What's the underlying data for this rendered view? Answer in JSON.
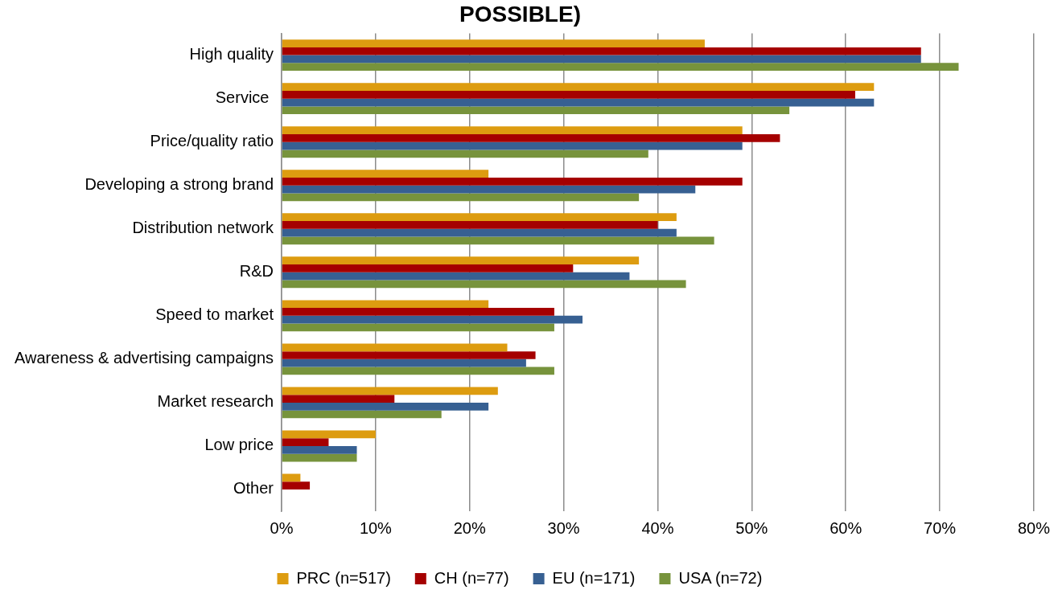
{
  "chart_data": {
    "type": "bar",
    "orientation": "horizontal",
    "title": "POSSIBLE)",
    "categories": [
      "High quality",
      "Service ",
      "Price/quality ratio",
      "Developing a strong brand",
      "Distribution network",
      "R&D",
      "Speed to market",
      "Awareness & advertising campaigns",
      "Market research",
      "Low price",
      "Other"
    ],
    "series": [
      {
        "name": "PRC (n=517)",
        "color": "#dd9c10",
        "values": [
          45,
          63,
          49,
          22,
          42,
          38,
          22,
          24,
          23,
          10,
          2
        ]
      },
      {
        "name": "CH (n=77)",
        "color": "#a50000",
        "values": [
          68,
          61,
          53,
          49,
          40,
          31,
          29,
          27,
          12,
          5,
          3
        ]
      },
      {
        "name": "EU (n=171)",
        "color": "#376092",
        "values": [
          68,
          63,
          49,
          44,
          42,
          37,
          32,
          26,
          22,
          8,
          null
        ]
      },
      {
        "name": "USA (n=72)",
        "color": "#77933c",
        "values": [
          72,
          54,
          39,
          38,
          46,
          43,
          29,
          29,
          17,
          8,
          null
        ]
      }
    ],
    "xlim": [
      0,
      80
    ],
    "xticks": [
      {
        "value": 0,
        "label": "0%"
      },
      {
        "value": 10,
        "label": "10%"
      },
      {
        "value": 20,
        "label": "20%"
      },
      {
        "value": 30,
        "label": "30%"
      },
      {
        "value": 40,
        "label": "40%"
      },
      {
        "value": 50,
        "label": "50%"
      },
      {
        "value": 60,
        "label": "60%"
      },
      {
        "value": 70,
        "label": "70%"
      },
      {
        "value": 80,
        "label": "80%"
      }
    ],
    "grid": "x",
    "legend": "bottom"
  }
}
